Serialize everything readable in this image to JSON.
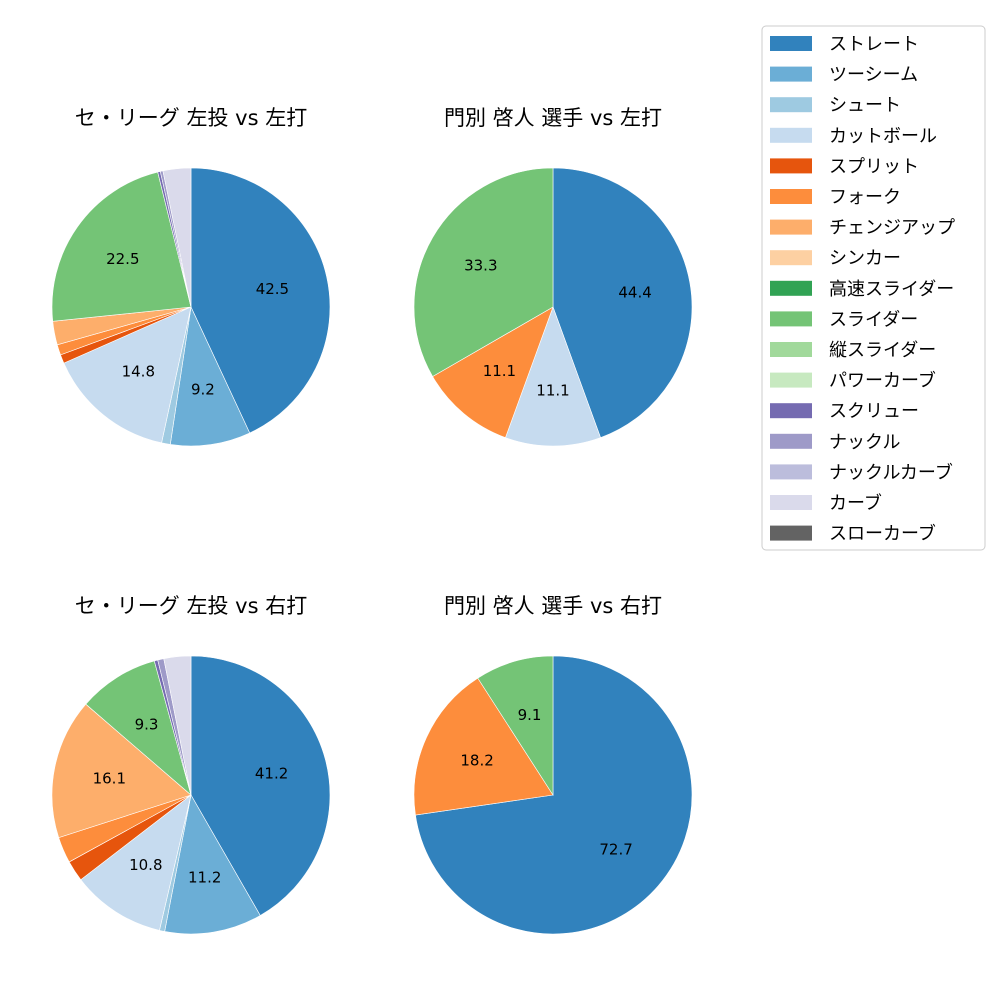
{
  "legend": {
    "items": [
      {
        "label": "ストレート",
        "color": "#3182bd"
      },
      {
        "label": "ツーシーム",
        "color": "#6baed6"
      },
      {
        "label": "シュート",
        "color": "#9ecae1"
      },
      {
        "label": "カットボール",
        "color": "#c6dbef"
      },
      {
        "label": "スプリット",
        "color": "#e6550d"
      },
      {
        "label": "フォーク",
        "color": "#fd8d3c"
      },
      {
        "label": "チェンジアップ",
        "color": "#fdae6b"
      },
      {
        "label": "シンカー",
        "color": "#fdd0a2"
      },
      {
        "label": "高速スライダー",
        "color": "#31a354"
      },
      {
        "label": "スライダー",
        "color": "#74c476"
      },
      {
        "label": "縦スライダー",
        "color": "#a1d99b"
      },
      {
        "label": "パワーカーブ",
        "color": "#c7e9c0"
      },
      {
        "label": "スクリュー",
        "color": "#756bb1"
      },
      {
        "label": "ナックル",
        "color": "#9e9ac8"
      },
      {
        "label": "ナックルカーブ",
        "color": "#bcbddc"
      },
      {
        "label": "カーブ",
        "color": "#dadaeb"
      },
      {
        "label": "スローカーブ",
        "color": "#636363"
      }
    ]
  },
  "chart_data": [
    {
      "type": "pie",
      "title": "セ・リーグ 左投 vs 左打",
      "slices": [
        {
          "category": "ストレート",
          "value": 42.5,
          "label": "42.5"
        },
        {
          "category": "ツーシーム",
          "value": 9.2,
          "label": "9.2"
        },
        {
          "category": "シュート",
          "value": 1.0,
          "label": ""
        },
        {
          "category": "カットボール",
          "value": 14.8,
          "label": "14.8"
        },
        {
          "category": "スプリット",
          "value": 1.0,
          "label": ""
        },
        {
          "category": "フォーク",
          "value": 1.2,
          "label": ""
        },
        {
          "category": "チェンジアップ",
          "value": 2.7,
          "label": ""
        },
        {
          "category": "スライダー",
          "value": 22.5,
          "label": "22.5"
        },
        {
          "category": "スクリュー",
          "value": 0.3,
          "label": ""
        },
        {
          "category": "ナックル",
          "value": 0.3,
          "label": ""
        },
        {
          "category": "カーブ",
          "value": 3.2,
          "label": ""
        }
      ]
    },
    {
      "type": "pie",
      "title": "門別 啓人 選手 vs 左打",
      "slices": [
        {
          "category": "ストレート",
          "value": 44.4,
          "label": "44.4"
        },
        {
          "category": "カットボール",
          "value": 11.1,
          "label": "11.1"
        },
        {
          "category": "フォーク",
          "value": 11.1,
          "label": "11.1"
        },
        {
          "category": "スライダー",
          "value": 33.3,
          "label": "33.3"
        }
      ]
    },
    {
      "type": "pie",
      "title": "セ・リーグ 左投 vs 右打",
      "slices": [
        {
          "category": "ストレート",
          "value": 41.2,
          "label": "41.2"
        },
        {
          "category": "ツーシーム",
          "value": 11.2,
          "label": "11.2"
        },
        {
          "category": "シュート",
          "value": 0.6,
          "label": ""
        },
        {
          "category": "カットボール",
          "value": 10.8,
          "label": "10.8"
        },
        {
          "category": "スプリット",
          "value": 2.4,
          "label": ""
        },
        {
          "category": "フォーク",
          "value": 3.0,
          "label": ""
        },
        {
          "category": "チェンジアップ",
          "value": 16.1,
          "label": "16.1"
        },
        {
          "category": "スライダー",
          "value": 9.3,
          "label": "9.3"
        },
        {
          "category": "スクリュー",
          "value": 0.4,
          "label": ""
        },
        {
          "category": "ナックル",
          "value": 0.7,
          "label": ""
        },
        {
          "category": "カーブ",
          "value": 3.1,
          "label": ""
        }
      ]
    },
    {
      "type": "pie",
      "title": "門別 啓人 選手 vs 右打",
      "slices": [
        {
          "category": "ストレート",
          "value": 72.7,
          "label": "72.7"
        },
        {
          "category": "フォーク",
          "value": 18.2,
          "label": "18.2"
        },
        {
          "category": "スライダー",
          "value": 9.1,
          "label": "9.1"
        }
      ]
    }
  ]
}
